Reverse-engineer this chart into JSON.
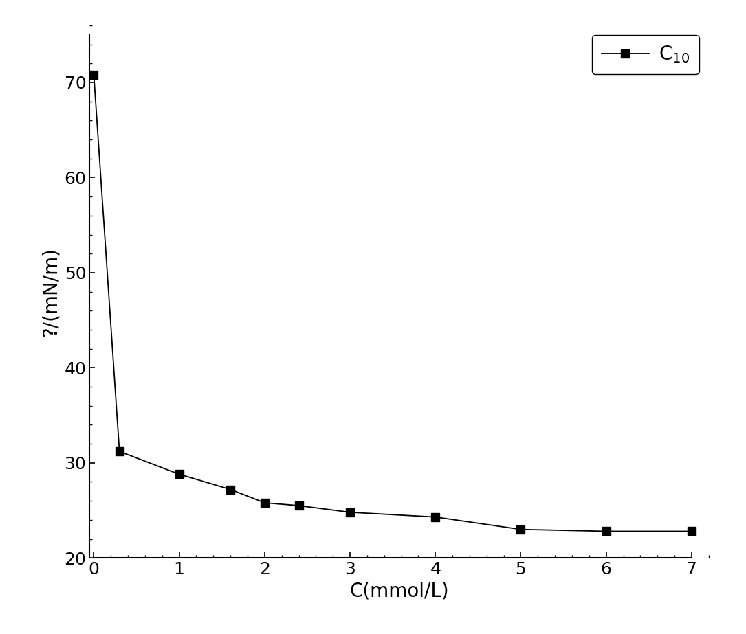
{
  "x": [
    0.0,
    0.3,
    1.0,
    1.6,
    2.0,
    2.4,
    3.0,
    4.0,
    5.0,
    6.0,
    7.0
  ],
  "y": [
    70.8,
    31.2,
    28.8,
    27.2,
    25.8,
    25.5,
    24.8,
    24.3,
    23.0,
    22.8,
    22.8
  ],
  "xlim": [
    -0.05,
    7.2
  ],
  "ylim": [
    20,
    76
  ],
  "xticks": [
    0,
    1,
    2,
    3,
    4,
    5,
    6,
    7
  ],
  "yticks": [
    20,
    30,
    40,
    50,
    60,
    70
  ],
  "xlabel": "C(mmol/L)",
  "ylabel": "?/(mN/m)",
  "legend_label": "C$_{10}$",
  "line_color": "#000000",
  "marker": "s",
  "marker_size": 8,
  "marker_color": "#000000",
  "line_width": 1.3,
  "xlabel_fontsize": 20,
  "ylabel_fontsize": 20,
  "tick_fontsize": 18,
  "legend_fontsize": 20,
  "figsize": [
    10.85,
    9.23
  ],
  "dpi": 100,
  "x_minor_ticks": 5,
  "y_minor_ticks": 5
}
